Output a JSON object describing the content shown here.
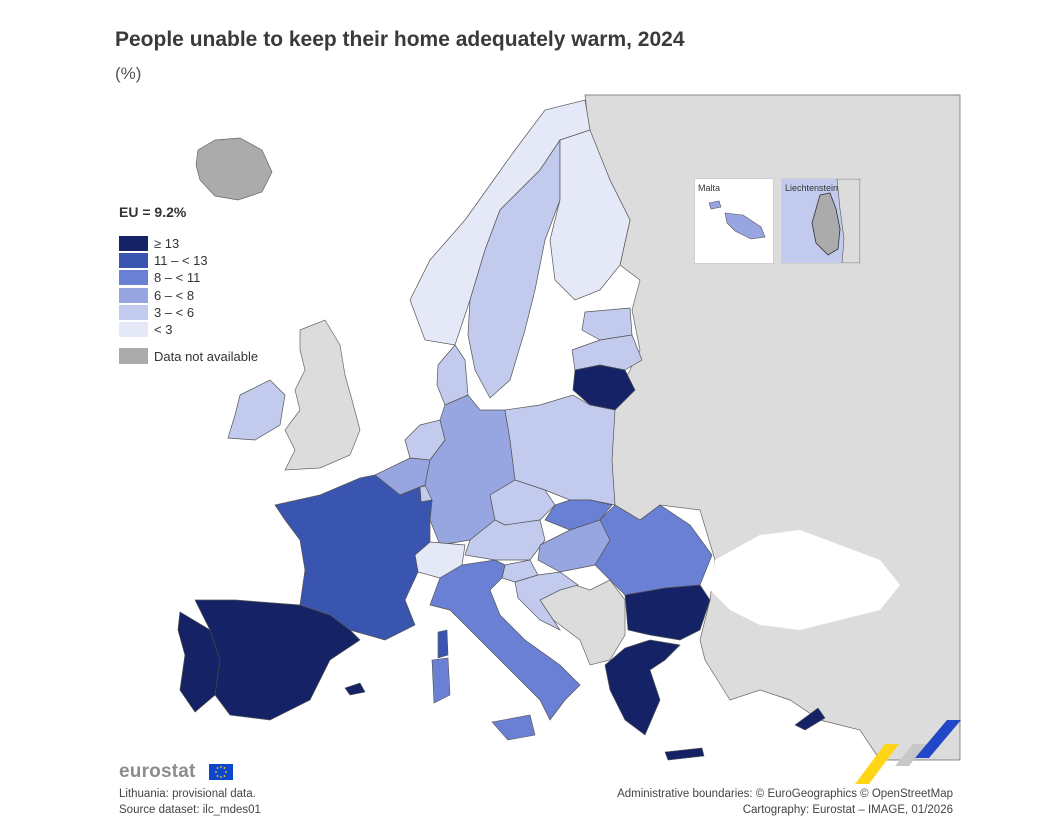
{
  "header": {
    "title": "People unable to keep their home adequately warm, 2024",
    "subtitle": "(%)"
  },
  "eu_average": "EU = 9.2%",
  "legend": {
    "classes": [
      {
        "label": "≥ 13",
        "color": "#152366"
      },
      {
        "label": "11 – < 13",
        "color": "#3a55b0"
      },
      {
        "label": "8 – < 11",
        "color": "#6a80d4"
      },
      {
        "label": "6 – < 8",
        "color": "#97a6e0"
      },
      {
        "label": "3 – < 6",
        "color": "#c2cbed"
      },
      {
        "label": "< 3",
        "color": "#e5e9f7"
      }
    ],
    "not_available": {
      "label": "Data not available",
      "color": "#ababab"
    }
  },
  "colors": {
    "non_eu_land": "#dcdcdc",
    "no_data": "#ababab",
    "border": "#555555"
  },
  "insets": [
    {
      "name": "Malta",
      "class": "6 – < 8"
    },
    {
      "name": "Liechtenstein",
      "class": "Data not available"
    }
  ],
  "countries": [
    {
      "name": "Spain",
      "class": "≥ 13"
    },
    {
      "name": "Portugal",
      "class": "≥ 13"
    },
    {
      "name": "Lithuania",
      "class": "≥ 13"
    },
    {
      "name": "Bulgaria",
      "class": "≥ 13"
    },
    {
      "name": "Greece",
      "class": "≥ 13"
    },
    {
      "name": "Cyprus",
      "class": "≥ 13"
    },
    {
      "name": "France",
      "class": "11 – < 13"
    },
    {
      "name": "Italy",
      "class": "8 – < 11"
    },
    {
      "name": "Romania",
      "class": "8 – < 11"
    },
    {
      "name": "Slovakia",
      "class": "8 – < 11"
    },
    {
      "name": "Germany",
      "class": "6 – < 8"
    },
    {
      "name": "Belgium",
      "class": "6 – < 8"
    },
    {
      "name": "Hungary",
      "class": "6 – < 8"
    },
    {
      "name": "Malta",
      "class": "6 – < 8"
    },
    {
      "name": "Croatia",
      "class": "3 – < 6"
    },
    {
      "name": "Poland",
      "class": "3 – < 6"
    },
    {
      "name": "Czechia",
      "class": "3 – < 6"
    },
    {
      "name": "Austria",
      "class": "3 – < 6"
    },
    {
      "name": "Slovenia",
      "class": "3 – < 6"
    },
    {
      "name": "Ireland",
      "class": "3 – < 6"
    },
    {
      "name": "Denmark",
      "class": "3 – < 6"
    },
    {
      "name": "Sweden",
      "class": "3 – < 6"
    },
    {
      "name": "Latvia",
      "class": "3 – < 6"
    },
    {
      "name": "Estonia",
      "class": "3 – < 6"
    },
    {
      "name": "Netherlands",
      "class": "3 – < 6"
    },
    {
      "name": "Luxembourg",
      "class": "3 – < 6"
    },
    {
      "name": "Finland",
      "class": "< 3"
    },
    {
      "name": "Norway",
      "class": "< 3"
    },
    {
      "name": "Switzerland",
      "class": "< 3"
    },
    {
      "name": "Iceland",
      "class": "Data not available"
    },
    {
      "name": "Liechtenstein",
      "class": "Data not available"
    }
  ],
  "footer": {
    "brand": "eurostat",
    "note": "Lithuania: provisional data.",
    "source": "Source dataset: ilc_mdes01",
    "credit_boundaries": "Administrative boundaries: © EuroGeographics © OpenStreetMap",
    "credit_cartography": "Cartography: Eurostat – IMAGE, 01/2026"
  }
}
